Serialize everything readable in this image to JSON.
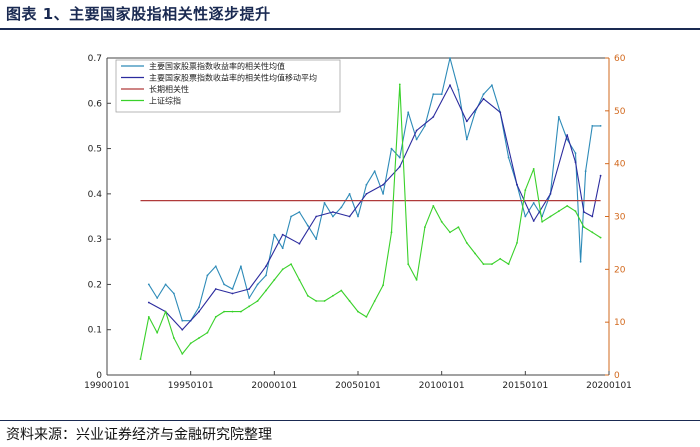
{
  "header": {
    "title": "图表 1、主要国家股指相关性逐步提升"
  },
  "footer": {
    "source": "资料来源：兴业证券经济与金融研究院整理"
  },
  "chart_data": {
    "type": "line",
    "title": "",
    "xlabel": "",
    "ylabel": "",
    "x_ticks": [
      "19900101",
      "19950101",
      "20000101",
      "20050101",
      "20100101",
      "20150101",
      "20200101"
    ],
    "x_range": [
      1990.0,
      2020.0
    ],
    "left_axis": {
      "ylim": [
        0,
        0.7
      ],
      "ticks": [
        "0",
        "0.1",
        "0.2",
        "0.3",
        "0.4",
        "0.5",
        "0.6",
        "0.7"
      ],
      "color": "#222222"
    },
    "right_axis": {
      "ylim": [
        0,
        60
      ],
      "ticks": [
        "0",
        "10",
        "20",
        "30",
        "40",
        "50",
        "60"
      ],
      "color": "#d2691e"
    },
    "legend_position": "top-left",
    "series": [
      {
        "name": "主要国家股票指数收益率的相关性均值",
        "axis": "left",
        "color": "#2e8bb8",
        "x": [
          1992.5,
          1993.0,
          1993.5,
          1994.0,
          1994.5,
          1995.0,
          1995.5,
          1996.0,
          1996.5,
          1997.0,
          1997.5,
          1998.0,
          1998.5,
          1999.0,
          1999.5,
          2000.0,
          2000.5,
          2001.0,
          2001.5,
          2002.0,
          2002.5,
          2003.0,
          2003.5,
          2004.0,
          2004.5,
          2005.0,
          2005.5,
          2006.0,
          2006.5,
          2007.0,
          2007.5,
          2008.0,
          2008.5,
          2009.0,
          2009.5,
          2010.0,
          2010.5,
          2011.0,
          2011.5,
          2012.0,
          2012.5,
          2013.0,
          2013.5,
          2014.0,
          2014.5,
          2015.0,
          2015.5,
          2016.0,
          2016.5,
          2017.0,
          2017.5,
          2018.0,
          2018.3,
          2018.6,
          2019.0,
          2019.5
        ],
        "values": [
          0.2,
          0.17,
          0.2,
          0.18,
          0.12,
          0.12,
          0.15,
          0.22,
          0.24,
          0.2,
          0.19,
          0.24,
          0.17,
          0.2,
          0.22,
          0.31,
          0.28,
          0.35,
          0.36,
          0.33,
          0.3,
          0.38,
          0.35,
          0.37,
          0.4,
          0.35,
          0.42,
          0.45,
          0.4,
          0.5,
          0.48,
          0.58,
          0.52,
          0.55,
          0.62,
          0.62,
          0.7,
          0.63,
          0.52,
          0.58,
          0.62,
          0.64,
          0.58,
          0.48,
          0.42,
          0.35,
          0.38,
          0.35,
          0.4,
          0.57,
          0.52,
          0.49,
          0.25,
          0.45,
          0.55,
          0.55
        ]
      },
      {
        "name": "主要国家股票指数收益率的相关性均值移动平均",
        "axis": "left",
        "color": "#2b2b9e",
        "x": [
          1992.5,
          1993.5,
          1994.5,
          1995.5,
          1996.5,
          1997.5,
          1998.5,
          1999.5,
          2000.5,
          2001.5,
          2002.5,
          2003.5,
          2004.5,
          2005.5,
          2006.5,
          2007.5,
          2008.5,
          2009.5,
          2010.5,
          2011.5,
          2012.5,
          2013.5,
          2014.5,
          2015.5,
          2016.5,
          2017.5,
          2018.0,
          2018.5,
          2019.0,
          2019.5
        ],
        "values": [
          0.16,
          0.14,
          0.1,
          0.14,
          0.19,
          0.18,
          0.19,
          0.24,
          0.31,
          0.29,
          0.35,
          0.36,
          0.35,
          0.4,
          0.42,
          0.46,
          0.54,
          0.57,
          0.64,
          0.56,
          0.61,
          0.58,
          0.42,
          0.34,
          0.4,
          0.53,
          0.47,
          0.36,
          0.35,
          0.44
        ]
      },
      {
        "name": "长期相关性",
        "axis": "left",
        "color": "#b03a3a",
        "x": [
          1992.0,
          2019.5
        ],
        "values": [
          0.385,
          0.385
        ]
      },
      {
        "name": "上证综指",
        "axis": "right",
        "color": "#39d12a",
        "x": [
          1992.0,
          1992.5,
          1993.0,
          1993.5,
          1994.0,
          1994.5,
          1995.0,
          1995.5,
          1996.0,
          1996.5,
          1997.0,
          1997.5,
          1998.0,
          1998.5,
          1999.0,
          1999.5,
          2000.0,
          2000.5,
          2001.0,
          2001.5,
          2002.0,
          2002.5,
          2003.0,
          2003.5,
          2004.0,
          2004.5,
          2005.0,
          2005.5,
          2006.0,
          2006.5,
          2007.0,
          2007.5,
          2008.0,
          2008.5,
          2009.0,
          2009.5,
          2010.0,
          2010.5,
          2011.0,
          2011.5,
          2012.0,
          2012.5,
          2013.0,
          2013.5,
          2014.0,
          2014.5,
          2015.0,
          2015.5,
          2016.0,
          2016.5,
          2017.0,
          2017.5,
          2018.0,
          2018.5,
          2019.0,
          2019.5
        ],
        "values": [
          3,
          11,
          8,
          12,
          7,
          4,
          6,
          7,
          8,
          11,
          12,
          12,
          12,
          13,
          14,
          16,
          18,
          20,
          21,
          18,
          15,
          14,
          14,
          15,
          16,
          14,
          12,
          11,
          14,
          17,
          27,
          55,
          21,
          18,
          28,
          32,
          29,
          27,
          28,
          25,
          23,
          21,
          21,
          22,
          21,
          25,
          35,
          39,
          29,
          30,
          31,
          32,
          31,
          28,
          27,
          26
        ]
      }
    ]
  }
}
